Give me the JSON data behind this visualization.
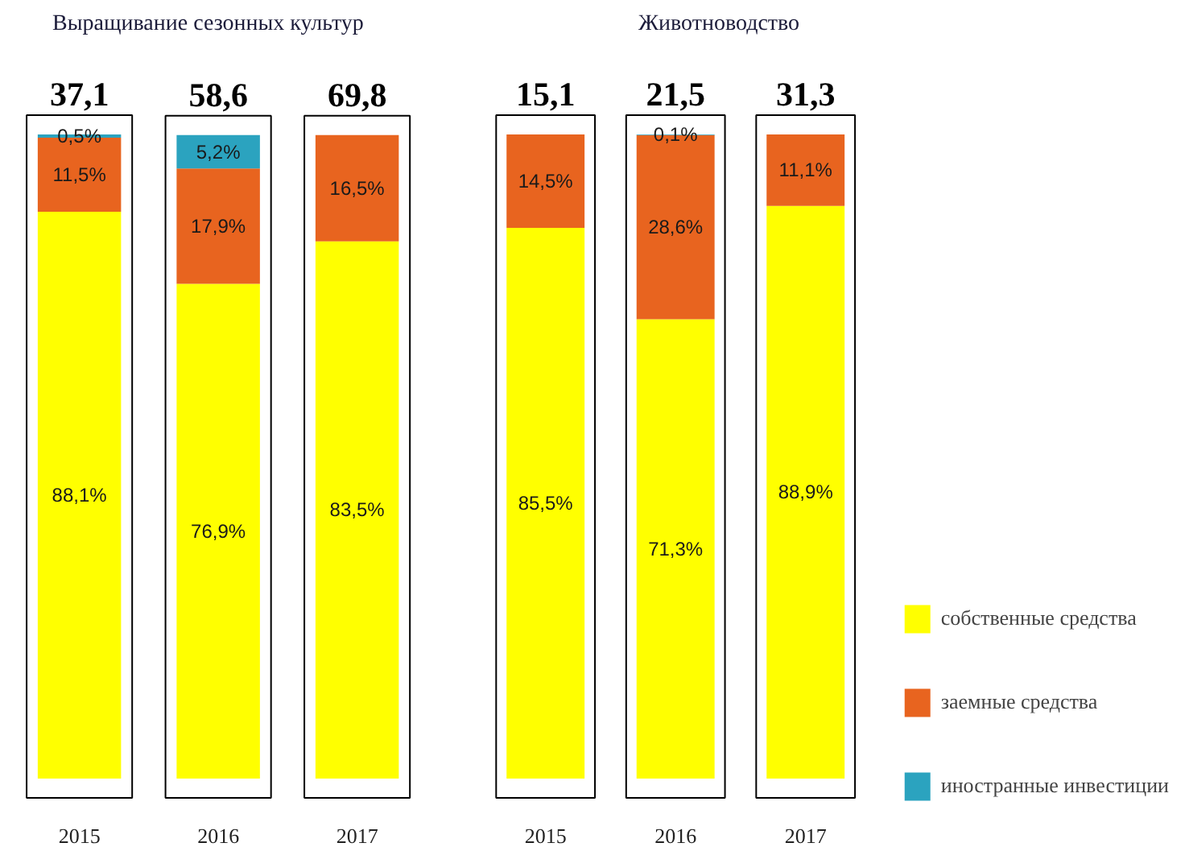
{
  "chart_data": [
    {
      "type": "bar",
      "title": "Выращивание сезонных культур",
      "categories": [
        "2015",
        "2016",
        "2017"
      ],
      "stacked": true,
      "series": [
        {
          "color": "#ffff00",
          "values": [
            88.1,
            76.9,
            83.5
          ],
          "value_labels": [
            "88,1%",
            "76,9%",
            "83,5%"
          ]
        },
        {
          "color": "#e8641f",
          "values": [
            11.5,
            17.9,
            16.5
          ],
          "value_labels": [
            "11,5%",
            "17,9%",
            "16,5%"
          ]
        },
        {
          "color": "#2ba3bf",
          "values": [
            0.5,
            5.2,
            null
          ],
          "value_labels": [
            "0,5%",
            "5,2%",
            null
          ]
        }
      ],
      "annotations": [
        "37,1",
        "58,6",
        "69,8"
      ]
    },
    {
      "type": "bar",
      "title": "Животноводство",
      "categories": [
        "2015",
        "2016",
        "2017"
      ],
      "stacked": true,
      "legend": "right",
      "series": [
        {
          "name": "собственные средства",
          "color": "#ffff00",
          "values": [
            85.5,
            71.3,
            88.9
          ],
          "value_labels": [
            "85,5%",
            "71,3%",
            "88,9%"
          ]
        },
        {
          "name": "заемные средства",
          "color": "#e8641f",
          "values": [
            14.5,
            28.6,
            11.1
          ],
          "value_labels": [
            "14,5%",
            "28,6%",
            "11,1%"
          ]
        },
        {
          "name": "иностранные инвестиции",
          "color": "#2ba3bf",
          "values": [
            null,
            0.1,
            null
          ],
          "value_labels": [
            null,
            "0,1%",
            null
          ]
        }
      ],
      "annotations": [
        "15,1",
        "21,5",
        "31,3"
      ]
    }
  ]
}
